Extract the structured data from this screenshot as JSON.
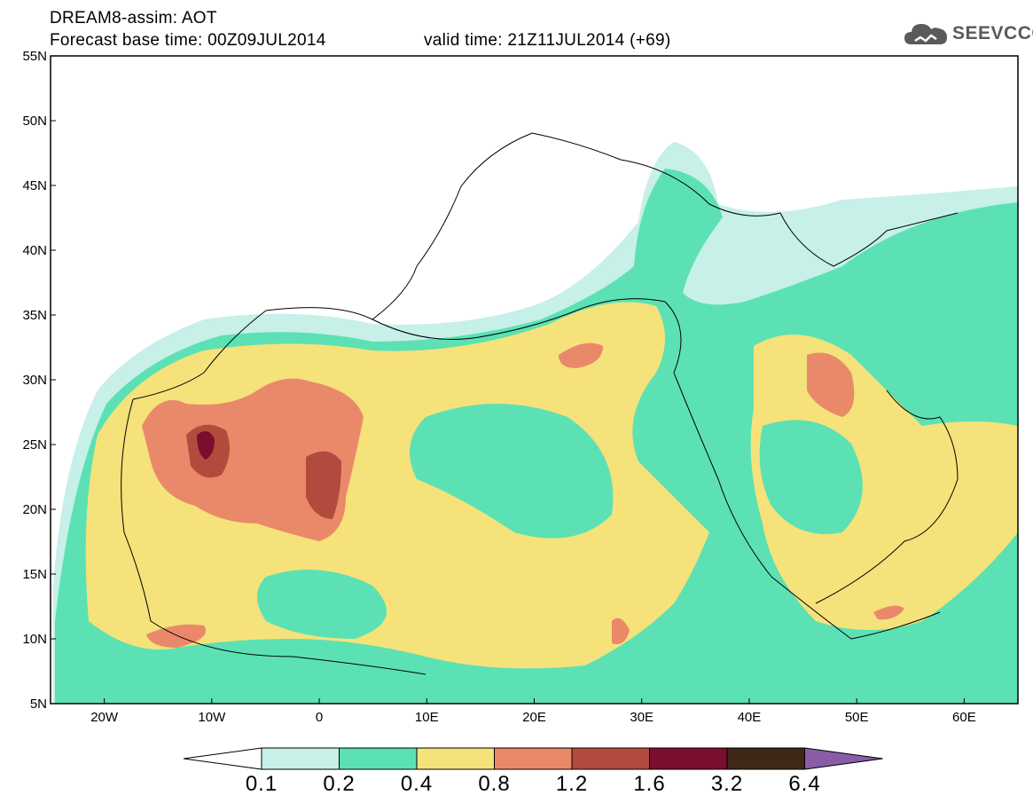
{
  "title": {
    "line1": "DREAM8-assim: AOT",
    "line2": "Forecast base time: 00Z09JUL2014",
    "valid": "valid time: 21Z11JUL2014 (+69)"
  },
  "logo": {
    "text": "SEEVCCC",
    "icon": "cloud-icon",
    "color": "#5a5a5a"
  },
  "axes": {
    "lat_labels": [
      "55N",
      "50N",
      "45N",
      "40N",
      "35N",
      "30N",
      "25N",
      "20N",
      "15N",
      "10N",
      "5N"
    ],
    "lon_labels": [
      "20W",
      "10W",
      "0",
      "10E",
      "20E",
      "30E",
      "40E",
      "50E",
      "60E"
    ]
  },
  "colorbar": {
    "labels": [
      "0.1",
      "0.2",
      "0.4",
      "0.8",
      "1.2",
      "1.6",
      "3.2",
      "6.4"
    ],
    "colors": [
      "#c6f0e8",
      "#5ce1b4",
      "#f5e27a",
      "#e9896a",
      "#b24b3e",
      "#7a0e2e",
      "#3f2817",
      "#8a5ca8"
    ]
  },
  "map_data": {
    "type": "filled-contour",
    "variable": "AOT",
    "lon_range": [
      -25,
      65
    ],
    "lat_range": [
      5,
      55
    ],
    "projection": "cylindrical"
  }
}
